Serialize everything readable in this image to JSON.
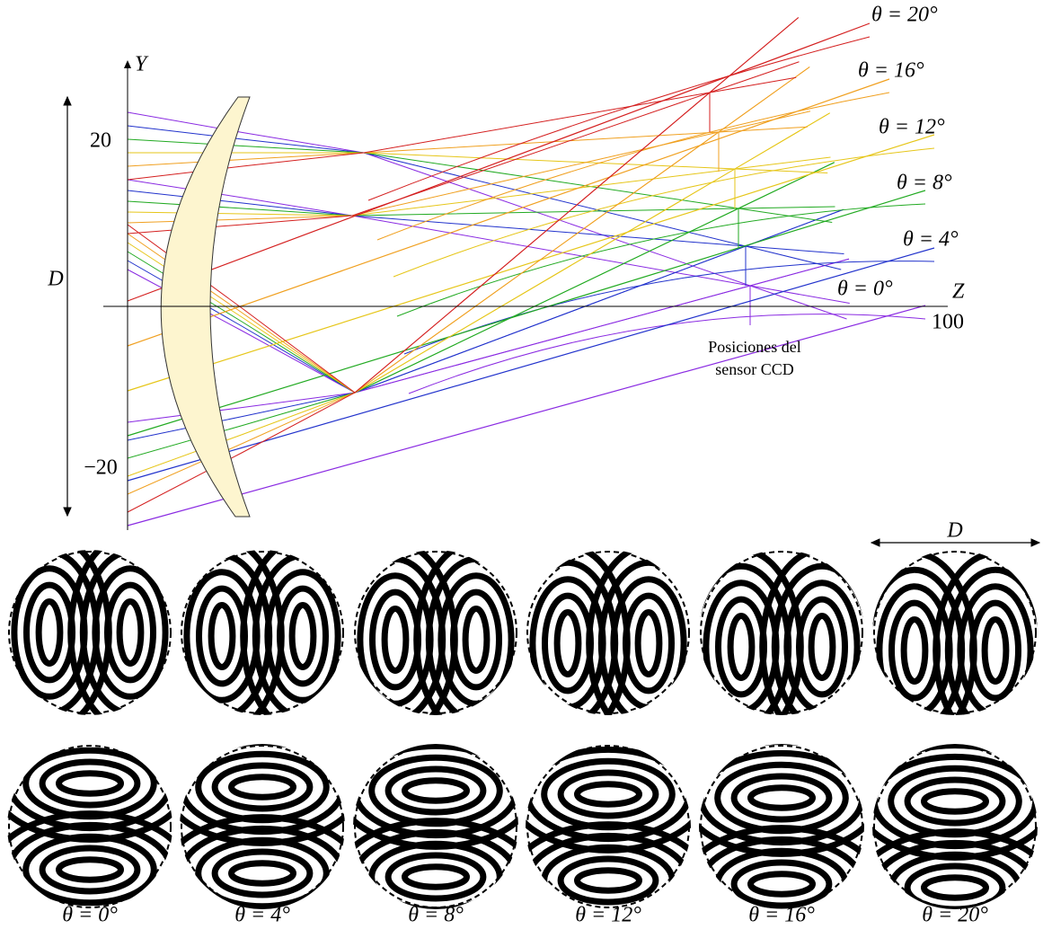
{
  "axes": {
    "y_label": "Y",
    "z_label": "Z",
    "y_ticks": [
      "20",
      "−20"
    ],
    "z_ticks": [
      "100"
    ]
  },
  "aperture_label": "D",
  "angle_labels": [
    "θ = 0°",
    "θ = 4°",
    "θ = 8°",
    "θ = 12°",
    "θ = 16°",
    "θ = 20°"
  ],
  "sensor_note": [
    "Posiciones del",
    "sensor CCD"
  ],
  "fringe_aperture_label": "D",
  "fringe_labels": [
    "θ = 0°",
    "θ = 4°",
    "θ = 8°",
    "θ = 12°",
    "θ = 16°",
    "θ = 20°"
  ]
}
